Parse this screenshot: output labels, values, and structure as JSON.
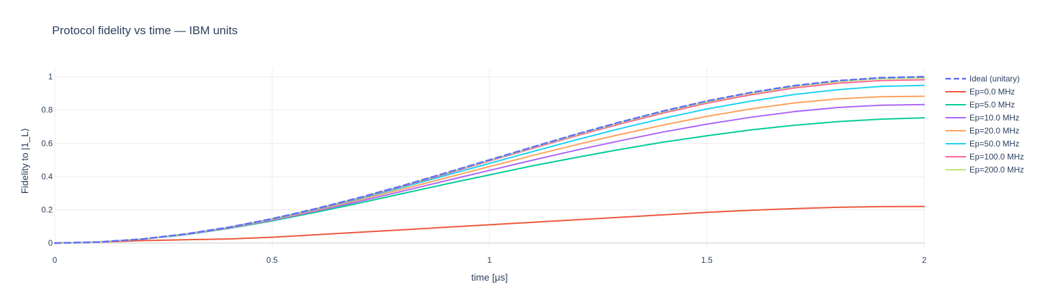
{
  "chart_data": {
    "type": "line",
    "title": "Protocol fidelity vs time — IBM units",
    "xlabel": "time [μs]",
    "ylabel": "Fidelity to |1_L⟩",
    "xlim": [
      0,
      2
    ],
    "ylim": [
      -0.02,
      1.05
    ],
    "xticks": [
      0,
      0.5,
      1,
      1.5,
      2
    ],
    "xticklabels": [
      "0",
      "0.5",
      "1",
      "1.5",
      "2"
    ],
    "yticks": [
      0,
      0.2,
      0.4,
      0.6,
      0.8,
      1
    ],
    "yticklabels": [
      "0",
      "0.2",
      "0.4",
      "0.6",
      "0.8",
      "1"
    ],
    "grid": true,
    "legend": "right",
    "x": [
      0,
      0.1,
      0.2,
      0.3,
      0.4,
      0.5,
      0.6,
      0.7,
      0.8,
      0.9,
      1.0,
      1.1,
      1.2,
      1.3,
      1.4,
      1.5,
      1.6,
      1.7,
      1.8,
      1.9,
      2.0
    ],
    "series": [
      {
        "name": "Ideal (unitary)",
        "color": "#636efa",
        "dash": "dash",
        "values": [
          0,
          0.006,
          0.024,
          0.054,
          0.095,
          0.146,
          0.206,
          0.273,
          0.345,
          0.422,
          0.5,
          0.578,
          0.655,
          0.727,
          0.794,
          0.854,
          0.905,
          0.946,
          0.976,
          0.994,
          1.0
        ]
      },
      {
        "name": "Ep=0.0 MHz",
        "color": "#ef553b",
        "dash": "solid",
        "values": [
          0,
          0.005,
          0.015,
          0.02,
          0.025,
          0.035,
          0.05,
          0.065,
          0.08,
          0.095,
          0.11,
          0.125,
          0.14,
          0.155,
          0.17,
          0.185,
          0.197,
          0.207,
          0.215,
          0.219,
          0.22
        ]
      },
      {
        "name": "Ep=5.0 MHz",
        "color": "#00cc96",
        "dash": "solid",
        "values": [
          0,
          0.006,
          0.023,
          0.05,
          0.088,
          0.133,
          0.185,
          0.24,
          0.298,
          0.355,
          0.41,
          0.465,
          0.515,
          0.563,
          0.607,
          0.645,
          0.68,
          0.708,
          0.73,
          0.745,
          0.753
        ]
      },
      {
        "name": "Ep=10.0 MHz",
        "color": "#ab63fa",
        "dash": "solid",
        "values": [
          0,
          0.006,
          0.023,
          0.051,
          0.09,
          0.137,
          0.192,
          0.25,
          0.312,
          0.375,
          0.437,
          0.499,
          0.559,
          0.615,
          0.668,
          0.715,
          0.756,
          0.79,
          0.815,
          0.829,
          0.833
        ]
      },
      {
        "name": "Ep=20.0 MHz",
        "color": "#ffa15a",
        "dash": "solid",
        "values": [
          0,
          0.006,
          0.024,
          0.052,
          0.092,
          0.14,
          0.197,
          0.259,
          0.324,
          0.392,
          0.46,
          0.527,
          0.592,
          0.653,
          0.71,
          0.762,
          0.806,
          0.842,
          0.867,
          0.88,
          0.883
        ]
      },
      {
        "name": "Ep=50.0 MHz",
        "color": "#19d3f3",
        "dash": "solid",
        "values": [
          0,
          0.006,
          0.024,
          0.053,
          0.093,
          0.143,
          0.202,
          0.266,
          0.335,
          0.407,
          0.479,
          0.551,
          0.621,
          0.688,
          0.75,
          0.806,
          0.853,
          0.893,
          0.922,
          0.942,
          0.948
        ]
      },
      {
        "name": "Ep=100.0 MHz",
        "color": "#ff6692",
        "dash": "solid",
        "values": [
          0,
          0.006,
          0.024,
          0.054,
          0.094,
          0.145,
          0.204,
          0.27,
          0.341,
          0.416,
          0.493,
          0.57,
          0.645,
          0.716,
          0.782,
          0.841,
          0.891,
          0.932,
          0.961,
          0.977,
          0.982
        ]
      },
      {
        "name": "Ep=200.0 MHz",
        "color": "#b6e880",
        "dash": "solid",
        "values": [
          0,
          0.006,
          0.024,
          0.054,
          0.095,
          0.146,
          0.206,
          0.272,
          0.344,
          0.42,
          0.497,
          0.575,
          0.651,
          0.723,
          0.789,
          0.849,
          0.9,
          0.941,
          0.971,
          0.988,
          0.993
        ]
      }
    ]
  }
}
